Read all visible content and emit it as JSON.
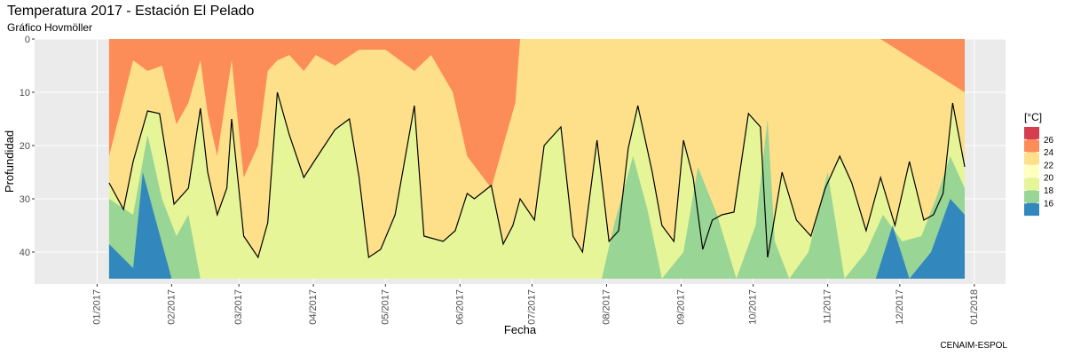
{
  "chart_data": {
    "type": "heatmap",
    "title": "Temperatura 2017 - Estación El Pelado",
    "subtitle": "Gráfico Hovmöller",
    "xlabel": "Fecha",
    "ylabel": "Profundidad",
    "caption": "CENAIM-ESPOL",
    "x_range": [
      "2016-12-06",
      "2018-01-14"
    ],
    "y_range": [
      0,
      46
    ],
    "y_reversed": true,
    "x_ticks": [
      "01/2017",
      "02/2017",
      "03/2017",
      "04/2017",
      "05/2017",
      "06/2017",
      "07/2017",
      "08/2017",
      "09/2017",
      "10/2017",
      "11/2017",
      "12/2017",
      "01/2018"
    ],
    "y_ticks": [
      0,
      10,
      20,
      30,
      40
    ],
    "data_extent": {
      "start": "2017-01-06",
      "end": "2017-12-28",
      "max_depth": 45
    },
    "legend": {
      "title": "[°C]",
      "entries": [
        {
          "label": "26",
          "color": "#d53e4f"
        },
        {
          "label": "24",
          "color": "#fc8d59"
        },
        {
          "label": "22",
          "color": "#fee08b"
        },
        {
          "label": "20",
          "color": "#ffffbf"
        },
        {
          "label": "18",
          "color": "#e6f598"
        },
        {
          "label": "16",
          "color": "#99d594"
        },
        {
          "label": "",
          "color": "#3288bd"
        }
      ]
    },
    "colors": {
      "panel_background": "#ebebeb",
      "gridline": "#ffffff"
    },
    "isotherm_20C_depth": {
      "dates": [
        "2017-01-06",
        "2017-01-12",
        "2017-01-16",
        "2017-01-22",
        "2017-01-27",
        "2017-02-02",
        "2017-02-08",
        "2017-02-13",
        "2017-02-16",
        "2017-02-20",
        "2017-02-24",
        "2017-02-26",
        "2017-03-03",
        "2017-03-09",
        "2017-03-13",
        "2017-03-17",
        "2017-03-22",
        "2017-03-28",
        "2017-04-02",
        "2017-04-10",
        "2017-04-16",
        "2017-04-20",
        "2017-04-24",
        "2017-04-29",
        "2017-05-05",
        "2017-05-13",
        "2017-05-17",
        "2017-05-25",
        "2017-05-30",
        "2017-06-04",
        "2017-06-07",
        "2017-06-14",
        "2017-06-19",
        "2017-06-23",
        "2017-06-26",
        "2017-07-02",
        "2017-07-06",
        "2017-07-13",
        "2017-07-18",
        "2017-07-22",
        "2017-07-28",
        "2017-08-02",
        "2017-08-06",
        "2017-08-10",
        "2017-08-14",
        "2017-08-20",
        "2017-08-24",
        "2017-08-29",
        "2017-09-02",
        "2017-09-06",
        "2017-09-10",
        "2017-09-14",
        "2017-09-18",
        "2017-09-23",
        "2017-09-29",
        "2017-10-04",
        "2017-10-07",
        "2017-10-09",
        "2017-10-13",
        "2017-10-19",
        "2017-10-25",
        "2017-10-31",
        "2017-11-06",
        "2017-11-11",
        "2017-11-17",
        "2017-11-23",
        "2017-11-29",
        "2017-12-05",
        "2017-12-11",
        "2017-12-15",
        "2017-12-19",
        "2017-12-23",
        "2017-12-28"
      ],
      "depths": [
        27,
        32,
        23,
        13.5,
        14,
        31,
        28,
        13,
        25,
        33,
        28,
        15,
        37,
        41,
        34.5,
        10,
        18,
        26,
        22.5,
        17,
        15,
        26,
        41,
        39.5,
        33,
        12.5,
        37,
        38,
        36,
        29,
        30,
        27.5,
        38.5,
        35,
        30,
        34,
        20,
        16.5,
        37,
        40,
        19,
        38,
        36,
        20.5,
        12.5,
        25,
        35,
        38,
        19,
        26,
        39.5,
        34,
        33,
        32.5,
        14,
        16.5,
        41,
        36,
        25,
        34,
        37,
        28,
        22,
        27,
        36,
        26,
        35,
        23,
        34,
        33,
        29,
        12,
        24
      ]
    },
    "cold_band_18C_depth": {
      "dates": [
        "2017-01-06",
        "2017-01-16",
        "2017-01-22",
        "2017-01-28",
        "2017-02-03",
        "2017-02-08",
        "2017-02-13",
        "2017-02-20",
        "2017-02-26",
        "2017-03-04",
        "2017-03-13",
        "2017-03-22",
        "2017-04-02",
        "2017-04-16",
        "2017-05-01",
        "2017-05-15",
        "2017-06-01",
        "2017-06-20",
        "2017-07-06",
        "2017-07-14",
        "2017-07-22",
        "2017-07-30",
        "2017-08-04",
        "2017-08-12",
        "2017-08-18",
        "2017-08-24",
        "2017-09-02",
        "2017-09-08",
        "2017-09-16",
        "2017-09-24",
        "2017-10-02",
        "2017-10-07",
        "2017-10-10",
        "2017-10-16",
        "2017-10-24",
        "2017-11-01",
        "2017-11-08",
        "2017-11-17",
        "2017-11-24",
        "2017-12-02",
        "2017-12-10",
        "2017-12-16",
        "2017-12-22",
        "2017-12-28"
      ],
      "depths": [
        30,
        33,
        18,
        30,
        37,
        33,
        45,
        45,
        45,
        45,
        45,
        45,
        45,
        45,
        45,
        45,
        45,
        45,
        45,
        45,
        45,
        45,
        35,
        22,
        32,
        45,
        40,
        24,
        33,
        45,
        35,
        15,
        38,
        45,
        40,
        25,
        45,
        40,
        33,
        38,
        37,
        30,
        22,
        28
      ]
    },
    "cold_band_16C_depth": {
      "dates": [
        "2017-01-06",
        "2017-01-16",
        "2017-01-20",
        "2017-01-26",
        "2017-02-01",
        "2017-11-21",
        "2017-11-28",
        "2017-12-05",
        "2017-12-14",
        "2017-12-22",
        "2017-12-28"
      ],
      "depths": [
        38.5,
        43,
        25,
        35,
        45,
        45,
        35,
        45,
        40,
        30,
        33
      ]
    },
    "warm_band_24C_depth": {
      "dates": [
        "2017-01-06",
        "2017-01-16",
        "2017-01-22",
        "2017-01-28",
        "2017-02-03",
        "2017-02-08",
        "2017-02-13",
        "2017-02-16",
        "2017-02-20",
        "2017-02-24",
        "2017-02-26",
        "2017-03-03",
        "2017-03-09",
        "2017-03-13",
        "2017-03-17",
        "2017-03-22",
        "2017-03-28",
        "2017-04-02",
        "2017-04-10",
        "2017-04-20",
        "2017-05-01",
        "2017-05-13",
        "2017-05-20",
        "2017-05-29",
        "2017-06-04",
        "2017-06-14",
        "2017-06-24",
        "2017-06-26",
        "2017-07-28",
        "2017-07-30",
        "2017-08-20",
        "2017-08-24",
        "2017-10-24",
        "2017-11-20",
        "2017-11-23",
        "2017-12-28"
      ],
      "depths": [
        22,
        4,
        6,
        5,
        16,
        12,
        4,
        14,
        22,
        10,
        4,
        26,
        20,
        6,
        4,
        3,
        6,
        3,
        5,
        2,
        2,
        6,
        3,
        10,
        22,
        28,
        12,
        0,
        0,
        0,
        0,
        0,
        0,
        0,
        0,
        10
      ]
    }
  }
}
